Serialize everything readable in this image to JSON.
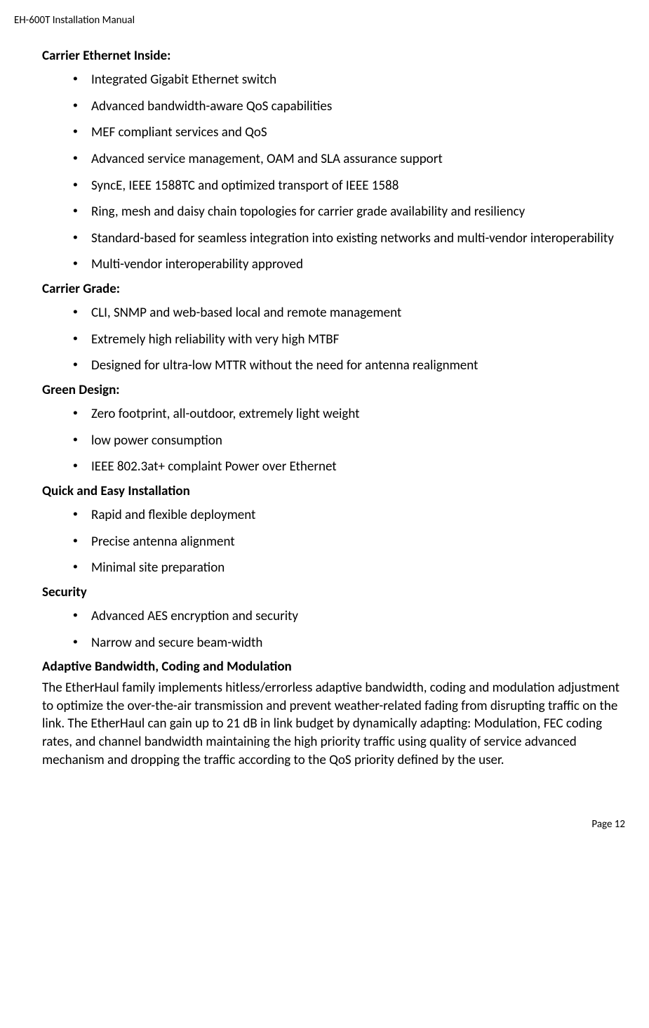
{
  "header": "EH-600T Installation Manual",
  "footer": "Page 12",
  "sections": [
    {
      "heading": "Carrier Ethernet Inside:",
      "items": [
        "Integrated Gigabit Ethernet switch",
        "Advanced bandwidth-aware QoS capabilities",
        "MEF compliant services and QoS",
        "Advanced service management, OAM and SLA assurance support",
        "SyncE, IEEE 1588TC and  optimized transport of IEEE 1588",
        "Ring, mesh and daisy chain topologies for carrier grade availability and resiliency",
        "Standard-based for seamless integration into existing networks and multi-vendor interoperability",
        "Multi-vendor interoperability approved"
      ]
    },
    {
      "heading": "Carrier Grade:",
      "items": [
        "CLI, SNMP and  web-based local and remote management",
        "Extremely high reliability with very high MTBF",
        "Designed for ultra-low MTTR without the need for antenna realignment"
      ]
    },
    {
      "heading": "Green Design:",
      "items": [
        "Zero footprint, all-outdoor, extremely light weight",
        "low power consumption",
        "IEEE 802.3at+ complaint  Power over Ethernet"
      ]
    },
    {
      "heading": "Quick and Easy Installation",
      "items": [
        "Rapid and flexible deployment",
        "Precise antenna alignment",
        "Minimal site preparation"
      ]
    },
    {
      "heading": "Security",
      "items": [
        "Advanced AES encryption and security",
        "Narrow and secure beam-width"
      ]
    }
  ],
  "final": {
    "heading": "Adaptive Bandwidth, Coding and Modulation",
    "body": "The EtherHaul family implements hitless/errorless adaptive bandwidth, coding and modulation adjustment to optimize the over-the-air transmission and prevent weather-related fading from disrupting traffic on the link. The EtherHaul can gain up to 21 dB in link budget by dynamically adapting: Modulation, FEC coding rates, and channel bandwidth maintaining the high priority traffic using quality of service advanced mechanism and dropping the traffic according to the QoS priority defined by the user."
  }
}
